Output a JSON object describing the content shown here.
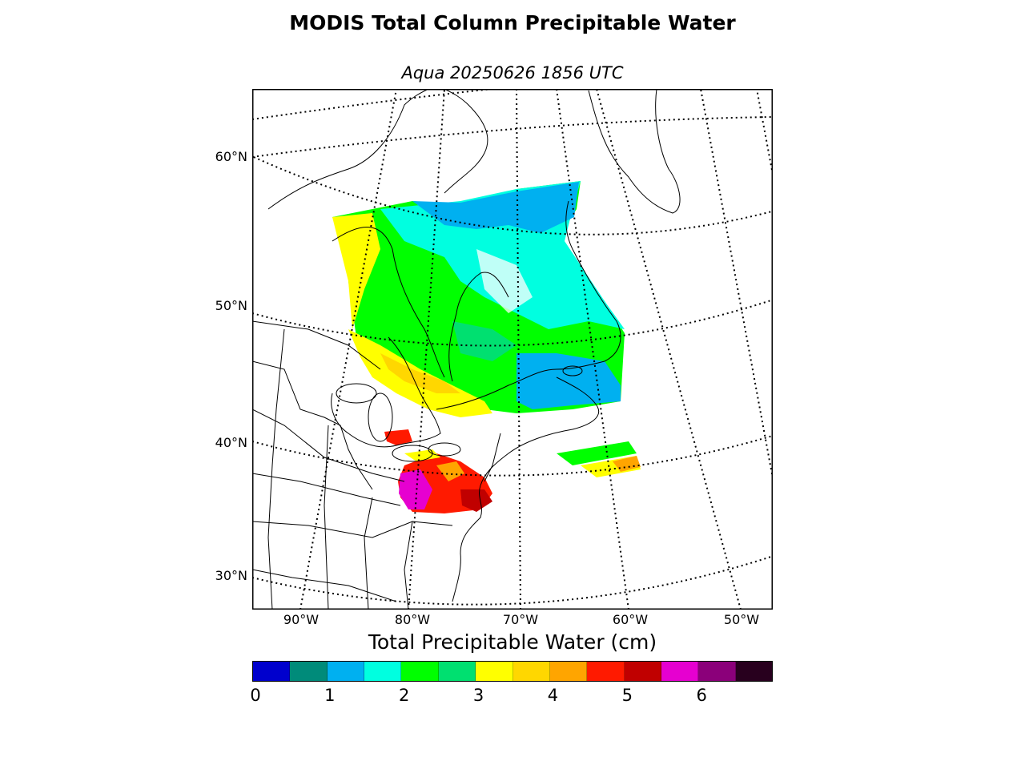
{
  "title": "MODIS Total Column Precipitable Water",
  "subtitle": "Aqua 20250626 1856 UTC",
  "map": {
    "lat_labels": [
      "60°N",
      "50°N",
      "40°N",
      "30°N"
    ],
    "lon_labels": [
      "90°W",
      "80°W",
      "70°W",
      "60°W",
      "50°W"
    ],
    "colors": {
      "coastline": "#000000",
      "graticule": "#000000"
    }
  },
  "colorbar": {
    "title": "Total Precipitable Water (cm)",
    "tick_labels": [
      "0",
      "1",
      "2",
      "3",
      "4",
      "5",
      "6"
    ],
    "colors": [
      "#0000cd",
      "#008b7a",
      "#00b0f0",
      "#00ffe0",
      "#00ff00",
      "#00e070",
      "#ffff00",
      "#ffd700",
      "#ffa500",
      "#ff1a00",
      "#c00000",
      "#e600d0",
      "#8b007a",
      "#28001e"
    ],
    "range": [
      0,
      7
    ]
  }
}
